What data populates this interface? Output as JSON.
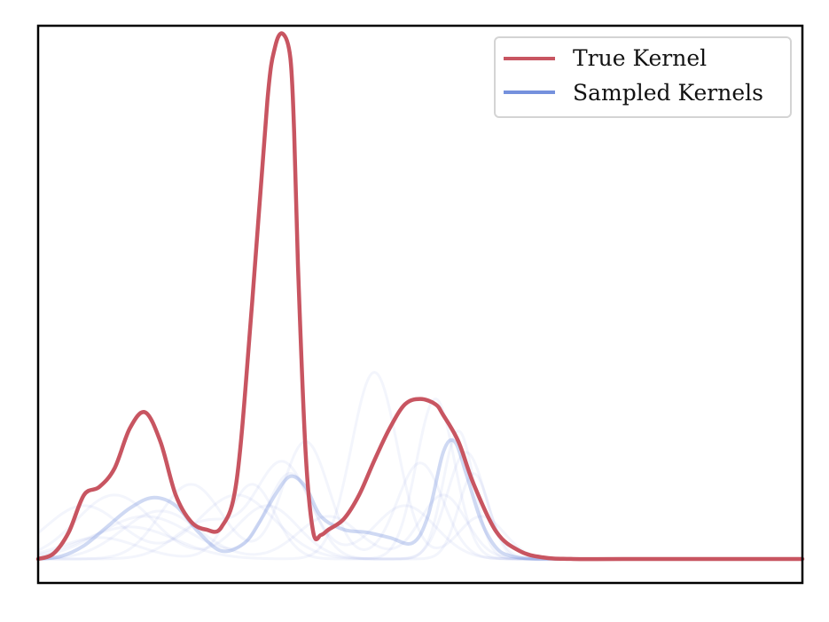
{
  "chart_data": {
    "type": "line",
    "title": "",
    "xlabel": "",
    "ylabel": "",
    "xlim": [
      0,
      1
    ],
    "ylim": [
      -0.045,
      1.0
    ],
    "axis_ticks": false,
    "grid": false,
    "legend": {
      "placement": "top-right",
      "entries": [
        {
          "label": "True Kernel",
          "color": "#c85561"
        },
        {
          "label": "Sampled Kernels",
          "color": "#7591dd"
        }
      ]
    },
    "series": [
      {
        "name": "True Kernel",
        "color": "#c85561",
        "x": [
          0.0,
          0.02,
          0.04,
          0.06,
          0.08,
          0.1,
          0.12,
          0.14,
          0.16,
          0.18,
          0.2,
          0.22,
          0.24,
          0.26,
          0.28,
          0.3,
          0.31,
          0.32,
          0.33,
          0.335,
          0.34,
          0.35,
          0.36,
          0.37,
          0.38,
          0.4,
          0.42,
          0.44,
          0.46,
          0.48,
          0.5,
          0.52,
          0.53,
          0.55,
          0.57,
          0.6,
          0.63,
          0.66,
          0.7,
          0.8,
          0.9,
          1.0
        ],
        "y": [
          0.0,
          0.01,
          0.05,
          0.12,
          0.135,
          0.17,
          0.245,
          0.275,
          0.22,
          0.12,
          0.07,
          0.055,
          0.06,
          0.15,
          0.48,
          0.86,
          0.96,
          0.985,
          0.94,
          0.8,
          0.55,
          0.2,
          0.05,
          0.045,
          0.055,
          0.075,
          0.12,
          0.185,
          0.245,
          0.29,
          0.3,
          0.29,
          0.27,
          0.22,
          0.14,
          0.05,
          0.015,
          0.003,
          0.0,
          0.0,
          0.0,
          0.0
        ]
      },
      {
        "name": "Sampled Kernels",
        "color": "#7591dd",
        "x": [
          0.0,
          0.03,
          0.06,
          0.09,
          0.12,
          0.15,
          0.18,
          0.21,
          0.24,
          0.27,
          0.29,
          0.31,
          0.33,
          0.35,
          0.37,
          0.4,
          0.43,
          0.46,
          0.49,
          0.51,
          0.53,
          0.545,
          0.56,
          0.58,
          0.6,
          0.62,
          0.65,
          0.7,
          0.8,
          0.9,
          1.0
        ],
        "y": [
          0.0,
          0.005,
          0.025,
          0.06,
          0.095,
          0.115,
          0.1,
          0.05,
          0.015,
          0.03,
          0.07,
          0.12,
          0.155,
          0.135,
          0.08,
          0.055,
          0.05,
          0.04,
          0.03,
          0.08,
          0.2,
          0.22,
          0.16,
          0.07,
          0.02,
          0.005,
          0.0,
          0.0,
          0.0,
          0.0,
          0.0
        ]
      }
    ]
  }
}
